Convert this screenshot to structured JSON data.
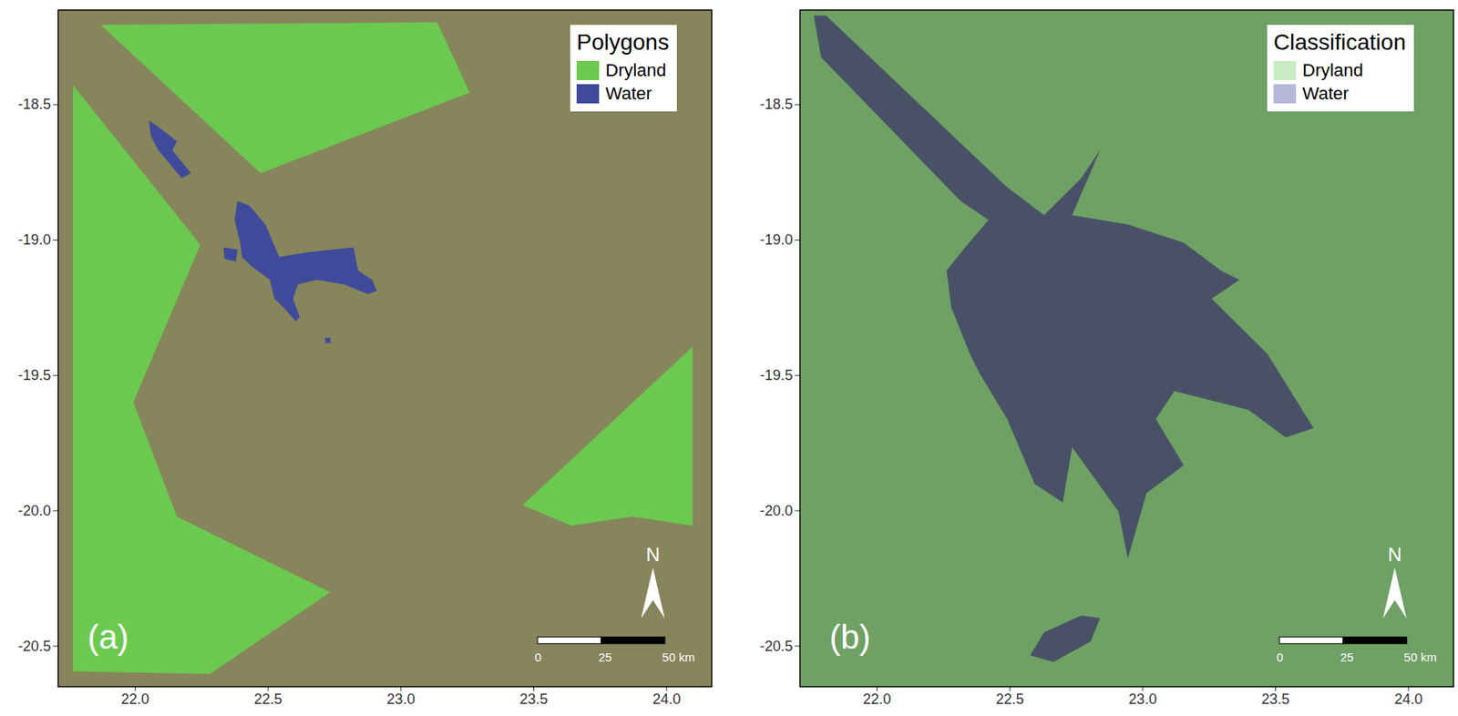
{
  "chart_data": [
    {
      "type": "map",
      "panel_label": "(a)",
      "legend_title": "Polygons",
      "legend": "top-right",
      "north_label": "N",
      "scale_bar": {
        "ticks": [
          0,
          25,
          {
            "value": 50,
            "label": "50 km"
          }
        ]
      },
      "xlim": [
        21.71,
        24.17
      ],
      "ylim": [
        -20.65,
        -18.15
      ],
      "xticks": [
        {
          "value": 22,
          "label": "22.0"
        },
        22.5,
        {
          "value": 23,
          "label": "23.0"
        },
        23.5,
        {
          "value": 24,
          "label": "24.0"
        }
      ],
      "yticks": [
        -18.5,
        {
          "value": -19,
          "label": "-19.0"
        },
        -19.5,
        {
          "value": -20,
          "label": "-20.0"
        },
        -20.5
      ],
      "series": [
        {
          "name": "Dryland",
          "color": "#6cc950",
          "polygons": [
            [
              [
                21.87,
                -18.205
              ],
              [
                23.136,
                -18.195
              ],
              [
                23.259,
                -18.455
              ],
              [
                22.472,
                -18.753
              ]
            ],
            [
              [
                21.766,
                -18.428
              ],
              [
                22.245,
                -19.017
              ],
              [
                21.993,
                -19.599
              ],
              [
                22.157,
                -20.021
              ],
              [
                22.734,
                -20.301
              ],
              [
                22.28,
                -20.603
              ],
              [
                21.766,
                -20.593
              ]
            ],
            [
              [
                24.098,
                -19.394
              ],
              [
                24.098,
                -20.055
              ],
              [
                23.871,
                -20.021
              ],
              [
                23.643,
                -20.055
              ],
              [
                23.458,
                -19.979
              ]
            ]
          ]
        },
        {
          "name": "Water",
          "color": "#3f4b9a",
          "polygons": [
            [
              [
                22.052,
                -18.558
              ],
              [
                22.087,
                -18.582
              ],
              [
                22.157,
                -18.634
              ],
              [
                22.14,
                -18.668
              ],
              [
                22.21,
                -18.753
              ],
              [
                22.175,
                -18.771
              ],
              [
                22.087,
                -18.668
              ],
              [
                22.059,
                -18.616
              ]
            ],
            [
              [
                22.385,
                -18.856
              ],
              [
                22.43,
                -18.873
              ],
              [
                22.49,
                -18.942
              ],
              [
                22.542,
                -19.062
              ],
              [
                22.647,
                -19.045
              ],
              [
                22.717,
                -19.038
              ],
              [
                22.822,
                -19.027
              ],
              [
                22.839,
                -19.113
              ],
              [
                22.892,
                -19.147
              ],
              [
                22.909,
                -19.188
              ],
              [
                22.874,
                -19.199
              ],
              [
                22.787,
                -19.164
              ],
              [
                22.682,
                -19.147
              ],
              [
                22.612,
                -19.164
              ],
              [
                22.594,
                -19.216
              ],
              [
                22.619,
                -19.284
              ],
              [
                22.605,
                -19.301
              ],
              [
                22.559,
                -19.25
              ],
              [
                22.524,
                -19.216
              ],
              [
                22.507,
                -19.147
              ],
              [
                22.437,
                -19.096
              ],
              [
                22.402,
                -19.062
              ],
              [
                22.395,
                -19.01
              ],
              [
                22.374,
                -18.925
              ]
            ],
            [
              [
                22.332,
                -19.027
              ],
              [
                22.385,
                -19.035
              ],
              [
                22.38,
                -19.079
              ],
              [
                22.336,
                -19.07
              ]
            ],
            [
              [
                22.715,
                -19.36
              ],
              [
                22.735,
                -19.36
              ],
              [
                22.735,
                -19.38
              ],
              [
                22.715,
                -19.38
              ]
            ]
          ]
        }
      ]
    },
    {
      "type": "map",
      "panel_label": "(b)",
      "legend_title": "Classification",
      "legend": "top-right",
      "north_label": "N",
      "scale_bar": {
        "ticks": [
          0,
          25,
          {
            "value": 50,
            "label": "50 km"
          }
        ]
      },
      "xlim": [
        21.71,
        24.17
      ],
      "ylim": [
        -20.65,
        -18.15
      ],
      "xticks": [
        {
          "value": 22,
          "label": "22.0"
        },
        22.5,
        {
          "value": 23,
          "label": "23.0"
        },
        23.5,
        {
          "value": 24,
          "label": "24.0"
        }
      ],
      "yticks": [
        -18.5,
        {
          "value": -19,
          "label": "-19.0"
        },
        -19.5,
        {
          "value": -20,
          "label": "-20.0"
        },
        -20.5
      ],
      "series": [
        {
          "name": "Dryland",
          "color": "#c8ebc3"
        },
        {
          "name": "Water",
          "color": "#b6b8da",
          "polygons": [
            [
              [
                21.762,
                -18.171
              ],
              [
                21.808,
                -18.171
              ],
              [
                22.49,
                -18.805
              ],
              [
                22.629,
                -18.908
              ],
              [
                22.769,
                -18.771
              ],
              [
                22.839,
                -18.668
              ],
              [
                22.734,
                -18.908
              ],
              [
                22.944,
                -18.942
              ],
              [
                23.154,
                -19.01
              ],
              [
                23.294,
                -19.113
              ],
              [
                23.364,
                -19.147
              ],
              [
                23.259,
                -19.216
              ],
              [
                23.469,
                -19.421
              ],
              [
                23.643,
                -19.695
              ],
              [
                23.538,
                -19.729
              ],
              [
                23.399,
                -19.627
              ],
              [
                23.119,
                -19.558
              ],
              [
                23.049,
                -19.661
              ],
              [
                23.154,
                -19.832
              ],
              [
                23.014,
                -19.935
              ],
              [
                22.944,
                -20.175
              ],
              [
                22.909,
                -20.003
              ],
              [
                22.734,
                -19.764
              ],
              [
                22.699,
                -19.969
              ],
              [
                22.594,
                -19.901
              ],
              [
                22.49,
                -19.661
              ],
              [
                22.385,
                -19.49
              ],
              [
                22.35,
                -19.421
              ],
              [
                22.28,
                -19.25
              ],
              [
                22.262,
                -19.113
              ],
              [
                22.332,
                -19.027
              ],
              [
                22.42,
                -18.925
              ],
              [
                22.315,
                -18.856
              ],
              [
                21.79,
                -18.325
              ]
            ],
            [
              [
                22.577,
                -20.534
              ],
              [
                22.629,
                -20.449
              ],
              [
                22.769,
                -20.387
              ],
              [
                22.839,
                -20.397
              ],
              [
                22.804,
                -20.483
              ],
              [
                22.664,
                -20.558
              ]
            ]
          ]
        }
      ]
    }
  ]
}
